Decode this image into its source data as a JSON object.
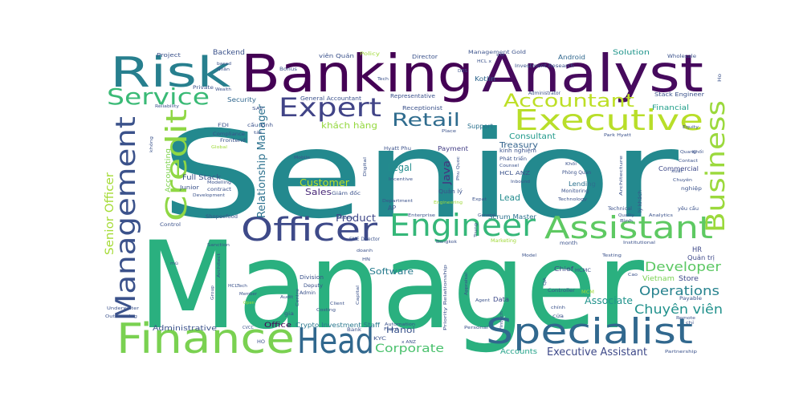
{
  "words": [
    {
      "text": "Senior",
      "color": "#23898e"
    },
    {
      "text": "Manager",
      "color": "#2ab07f"
    },
    {
      "text": "Banking",
      "color": "#440154"
    },
    {
      "text": "Analyst",
      "color": "#460a5d"
    },
    {
      "text": "Risk",
      "color": "#277f8e"
    },
    {
      "text": "Finance",
      "color": "#7ad151"
    },
    {
      "text": "Specialist",
      "color": "#31688e"
    },
    {
      "text": "Head",
      "color": "#31688e"
    },
    {
      "text": "Officer",
      "color": "#3e4a89"
    },
    {
      "text": "Engineer",
      "color": "#35b779"
    },
    {
      "text": "Assistant",
      "color": "#5ec962"
    },
    {
      "text": "Executive",
      "color": "#b8de29"
    },
    {
      "text": "Expert",
      "color": "#414487"
    },
    {
      "text": "Accountant",
      "color": "#bddf26"
    },
    {
      "text": "Service",
      "color": "#3aba76"
    },
    {
      "text": "Management",
      "color": "#3b528b"
    },
    {
      "text": "Credit",
      "color": "#8fd744"
    },
    {
      "text": "Business",
      "color": "#9bd93c"
    },
    {
      "text": "Retail",
      "color": "#2f6c8e"
    },
    {
      "text": "Developer",
      "color": "#5cc863"
    },
    {
      "text": "Operations",
      "color": "#26828e"
    },
    {
      "text": "Chuyên viên",
      "color": "#21918c"
    },
    {
      "text": "Associate",
      "color": "#20938c"
    },
    {
      "text": "Corporate",
      "color": "#4ac16d"
    },
    {
      "text": "Executive Assistant",
      "color": "#3e4989"
    },
    {
      "text": "Senior Officer",
      "color": "#a5db36"
    },
    {
      "text": "Relationship Manager",
      "color": "#2c718e"
    },
    {
      "text": "Product",
      "color": "#3f4788"
    },
    {
      "text": "Customer",
      "color": "#bade28"
    },
    {
      "text": "Legal",
      "color": "#228c8d"
    },
    {
      "text": "Java",
      "color": "#46317e"
    },
    {
      "text": "Consultant",
      "color": "#1f998a"
    },
    {
      "text": "Treasury",
      "color": "#33638d"
    },
    {
      "text": "Sales",
      "color": "#482878"
    },
    {
      "text": "Lead",
      "color": "#228b8d"
    },
    {
      "text": "Software",
      "color": "#287c8e"
    },
    {
      "text": "Hanoi",
      "color": "#3a548c"
    },
    {
      "text": "khách hàng",
      "color": "#95d840"
    },
    {
      "text": "Accounting",
      "color": "#7fd34e"
    },
    {
      "text": "Solution",
      "color": "#1f958b"
    },
    {
      "text": "Backend",
      "color": "#3b528b"
    },
    {
      "text": "Full Stack",
      "color": "#3b528b"
    },
    {
      "text": "Administrative",
      "color": "#3b528b"
    },
    {
      "text": "Office",
      "color": "#440154"
    },
    {
      "text": "Crypto Investment Staff",
      "color": "#2a788e"
    },
    {
      "text": "Accounts",
      "color": "#1fa187"
    },
    {
      "text": "Financial",
      "color": "#1f9e89"
    },
    {
      "text": "HR",
      "color": "#3e4989"
    },
    {
      "text": "Quản trị",
      "color": "#3e4989"
    },
    {
      "text": "Vietnam",
      "color": "#7ad151"
    },
    {
      "text": "Store",
      "color": "#3e4989"
    },
    {
      "text": "Chief",
      "color": "#3e4989"
    },
    {
      "text": "Data",
      "color": "#3e4989"
    },
    {
      "text": "Payment",
      "color": "#433e85"
    },
    {
      "text": "Support",
      "color": "#2c718e"
    },
    {
      "text": "Commercial",
      "color": "#3e4989"
    },
    {
      "text": "Lending",
      "color": "#2c718e"
    },
    {
      "text": "Scrum Master",
      "color": "#2c718e"
    },
    {
      "text": "Android",
      "color": "#31688e"
    },
    {
      "text": "Kotlin",
      "color": "#31688e"
    },
    {
      "text": "Security",
      "color": "#31688e"
    },
    {
      "text": "Project",
      "color": "#3b528b"
    },
    {
      "text": "Bonus",
      "color": "#3b528b"
    },
    {
      "text": "Director",
      "color": "#3b528b"
    },
    {
      "text": "Receptionist",
      "color": "#3b528b"
    },
    {
      "text": "Representative",
      "color": "#3b528b"
    },
    {
      "text": "General Accountant",
      "color": "#3b528b"
    },
    {
      "text": "Policy",
      "color": "#a0da39"
    },
    {
      "text": "Management Gold",
      "color": "#3b528b"
    },
    {
      "text": "Investment Research",
      "color": "#3b528b"
    },
    {
      "text": "Stack Engineer",
      "color": "#3b528b"
    },
    {
      "text": "Wholesale",
      "color": "#3b528b"
    },
    {
      "text": "Administrator",
      "color": "#3b528b"
    },
    {
      "text": "viên Quản",
      "color": "#3b528b"
    },
    {
      "text": "Tech",
      "color": "#3b528b"
    },
    {
      "text": "FDI",
      "color": "#3b528b"
    },
    {
      "text": "Frontend",
      "color": "#3b528b"
    },
    {
      "text": "Compliance",
      "color": "#3b528b"
    },
    {
      "text": "Global",
      "color": "#a0da39"
    },
    {
      "text": "Private",
      "color": "#3b528b"
    },
    {
      "text": "Wealth",
      "color": "#3b528b"
    },
    {
      "text": "Reliability",
      "color": "#3b528b"
    },
    {
      "text": "Mobile",
      "color": "#3b528b"
    },
    {
      "text": "Junior",
      "color": "#3b528b"
    },
    {
      "text": "contract",
      "color": "#3b528b"
    },
    {
      "text": "Modelling",
      "color": "#3b528b"
    },
    {
      "text": "Development",
      "color": "#3b528b"
    },
    {
      "text": "Shopeefood",
      "color": "#3b528b"
    },
    {
      "text": "Control",
      "color": "#3b528b"
    },
    {
      "text": "Sanction",
      "color": "#3b528b"
    },
    {
      "text": "Architect",
      "color": "#3b528b"
    },
    {
      "text": "HCLTech",
      "color": "#3b528b"
    },
    {
      "text": "Member",
      "color": "#3b528b"
    },
    {
      "text": "Open",
      "color": "#a0da39"
    },
    {
      "text": "Underwriter",
      "color": "#3b528b"
    },
    {
      "text": "Outsourcing",
      "color": "#3b528b"
    },
    {
      "text": "CVCC",
      "color": "#3b528b"
    },
    {
      "text": "Division",
      "color": "#3b528b"
    },
    {
      "text": "Deputy",
      "color": "#3b528b"
    },
    {
      "text": "Admin",
      "color": "#3b528b"
    },
    {
      "text": "Costing",
      "color": "#3b528b"
    },
    {
      "text": "SME Director",
      "color": "#3b528b"
    },
    {
      "text": "Bank",
      "color": "#3b528b"
    },
    {
      "text": "KYC",
      "color": "#3b528b"
    },
    {
      "text": "Automation",
      "color": "#3b528b"
    },
    {
      "text": "Front",
      "color": "#3b528b"
    },
    {
      "text": "Priority Relationship",
      "color": "#3b528b"
    },
    {
      "text": "Personal",
      "color": "#3b528b"
    },
    {
      "text": "Agent",
      "color": "#3b528b"
    },
    {
      "text": "Model",
      "color": "#3b528b"
    },
    {
      "text": "month",
      "color": "#3b528b"
    },
    {
      "text": "Marketing",
      "color": "#a0da39"
    },
    {
      "text": "Enterprise",
      "color": "#3b528b"
    },
    {
      "text": "Department",
      "color": "#3b528b"
    },
    {
      "text": "Incentive",
      "color": "#3b528b"
    },
    {
      "text": "Hyatt Phu",
      "color": "#3b528b"
    },
    {
      "text": "Phu Quoc",
      "color": "#3b528b"
    },
    {
      "text": "kinh nghiệm",
      "color": "#3b528b"
    },
    {
      "text": "Phát triển",
      "color": "#3b528b"
    },
    {
      "text": "Counsel",
      "color": "#3b528b"
    },
    {
      "text": "HCL ANZ",
      "color": "#3b528b"
    },
    {
      "text": "Inbound",
      "color": "#3b528b"
    },
    {
      "text": "Phòng Quản",
      "color": "#3b528b"
    },
    {
      "text": "Monitoring",
      "color": "#3b528b"
    },
    {
      "text": "Quản lý",
      "color": "#3b528b"
    },
    {
      "text": "Giám đốc",
      "color": "#3b528b"
    },
    {
      "text": "Middle",
      "color": "#3b528b"
    },
    {
      "text": "General",
      "color": "#3b528b"
    },
    {
      "text": "Bangkok",
      "color": "#3b528b"
    },
    {
      "text": "Khối",
      "color": "#3b528b"
    },
    {
      "text": "Architecture",
      "color": "#3b528b"
    },
    {
      "text": "Technical",
      "color": "#3b528b"
    },
    {
      "text": "Quality",
      "color": "#3b528b"
    },
    {
      "text": "Analytics",
      "color": "#3b528b"
    },
    {
      "text": "Park Hyatt",
      "color": "#3b528b"
    },
    {
      "text": "Equity",
      "color": "#3b528b"
    },
    {
      "text": "Quang",
      "color": "#3b528b"
    },
    {
      "text": "Contact",
      "color": "#3b528b"
    },
    {
      "text": "nghiệp",
      "color": "#3b528b"
    },
    {
      "text": "lý khách",
      "color": "#3b528b"
    },
    {
      "text": "yêu cầu",
      "color": "#3b528b"
    },
    {
      "text": "Payable",
      "color": "#3b528b"
    },
    {
      "text": "Remote",
      "color": "#3b528b"
    },
    {
      "text": "Institutional",
      "color": "#3b528b"
    },
    {
      "text": "Partnership",
      "color": "#3b528b"
    },
    {
      "text": "Controller",
      "color": "#3b528b"
    },
    {
      "text": "HCMC",
      "color": "#3b528b"
    },
    {
      "text": "MCM",
      "color": "#a0da39"
    },
    {
      "text": "chính",
      "color": "#3b528b"
    },
    {
      "text": "Fintech",
      "color": "#3b528b"
    },
    {
      "text": "cửa",
      "color": "#3b528b"
    },
    {
      "text": "Appraisal",
      "color": "#3b528b"
    },
    {
      "text": "Capital",
      "color": "#3b528b"
    },
    {
      "text": "Client",
      "color": "#3b528b"
    },
    {
      "text": "Centre",
      "color": "#3b528b"
    },
    {
      "text": "Place",
      "color": "#3b528b"
    },
    {
      "text": "Digital",
      "color": "#3b528b"
    },
    {
      "text": "Trung",
      "color": "#3b528b"
    },
    {
      "text": "Expat",
      "color": "#3b528b"
    },
    {
      "text": "Technology",
      "color": "#3b528b"
    },
    {
      "text": "Testing",
      "color": "#3b528b"
    },
    {
      "text": "doanh",
      "color": "#3b528b"
    },
    {
      "text": "Audit",
      "color": "#3b528b"
    },
    {
      "text": "gia",
      "color": "#3b528b"
    },
    {
      "text": "Group",
      "color": "#3b528b"
    },
    {
      "text": "Chuyên",
      "color": "#3b528b"
    },
    {
      "text": "cấu kinh",
      "color": "#3b528b"
    },
    {
      "text": "based",
      "color": "#3b528b"
    },
    {
      "text": "Nhân",
      "color": "#3b528b"
    },
    {
      "text": "SAP",
      "color": "#3b528b"
    },
    {
      "text": "Engineering",
      "color": "#a0da39"
    },
    {
      "text": "Bình",
      "color": "#3b528b"
    },
    {
      "text": "Ho",
      "color": "#3b528b"
    },
    {
      "text": "HCL x",
      "color": "#3b528b"
    },
    {
      "text": "x ANZ",
      "color": "#3b528b"
    },
    {
      "text": "Cao",
      "color": "#3b528b"
    },
    {
      "text": "AP",
      "color": "#3b528b"
    },
    {
      "text": "QA",
      "color": "#3b528b"
    },
    {
      "text": "HN",
      "color": "#3b528b"
    },
    {
      "text": "HO",
      "color": "#3b528b"
    },
    {
      "text": "tài",
      "color": "#3b528b"
    },
    {
      "text": "mũ",
      "color": "#3b528b"
    },
    {
      "text": "cơ",
      "color": "#3b528b"
    },
    {
      "text": "chỉ",
      "color": "#3b528b"
    },
    {
      "text": "xuất",
      "color": "#3b528b"
    },
    {
      "text": "không",
      "color": "#3b528b"
    },
    {
      "text": "Khối",
      "color": "#3b528b"
    },
    {
      "text": "DBS",
      "color": "#3b528b"
    }
  ]
}
